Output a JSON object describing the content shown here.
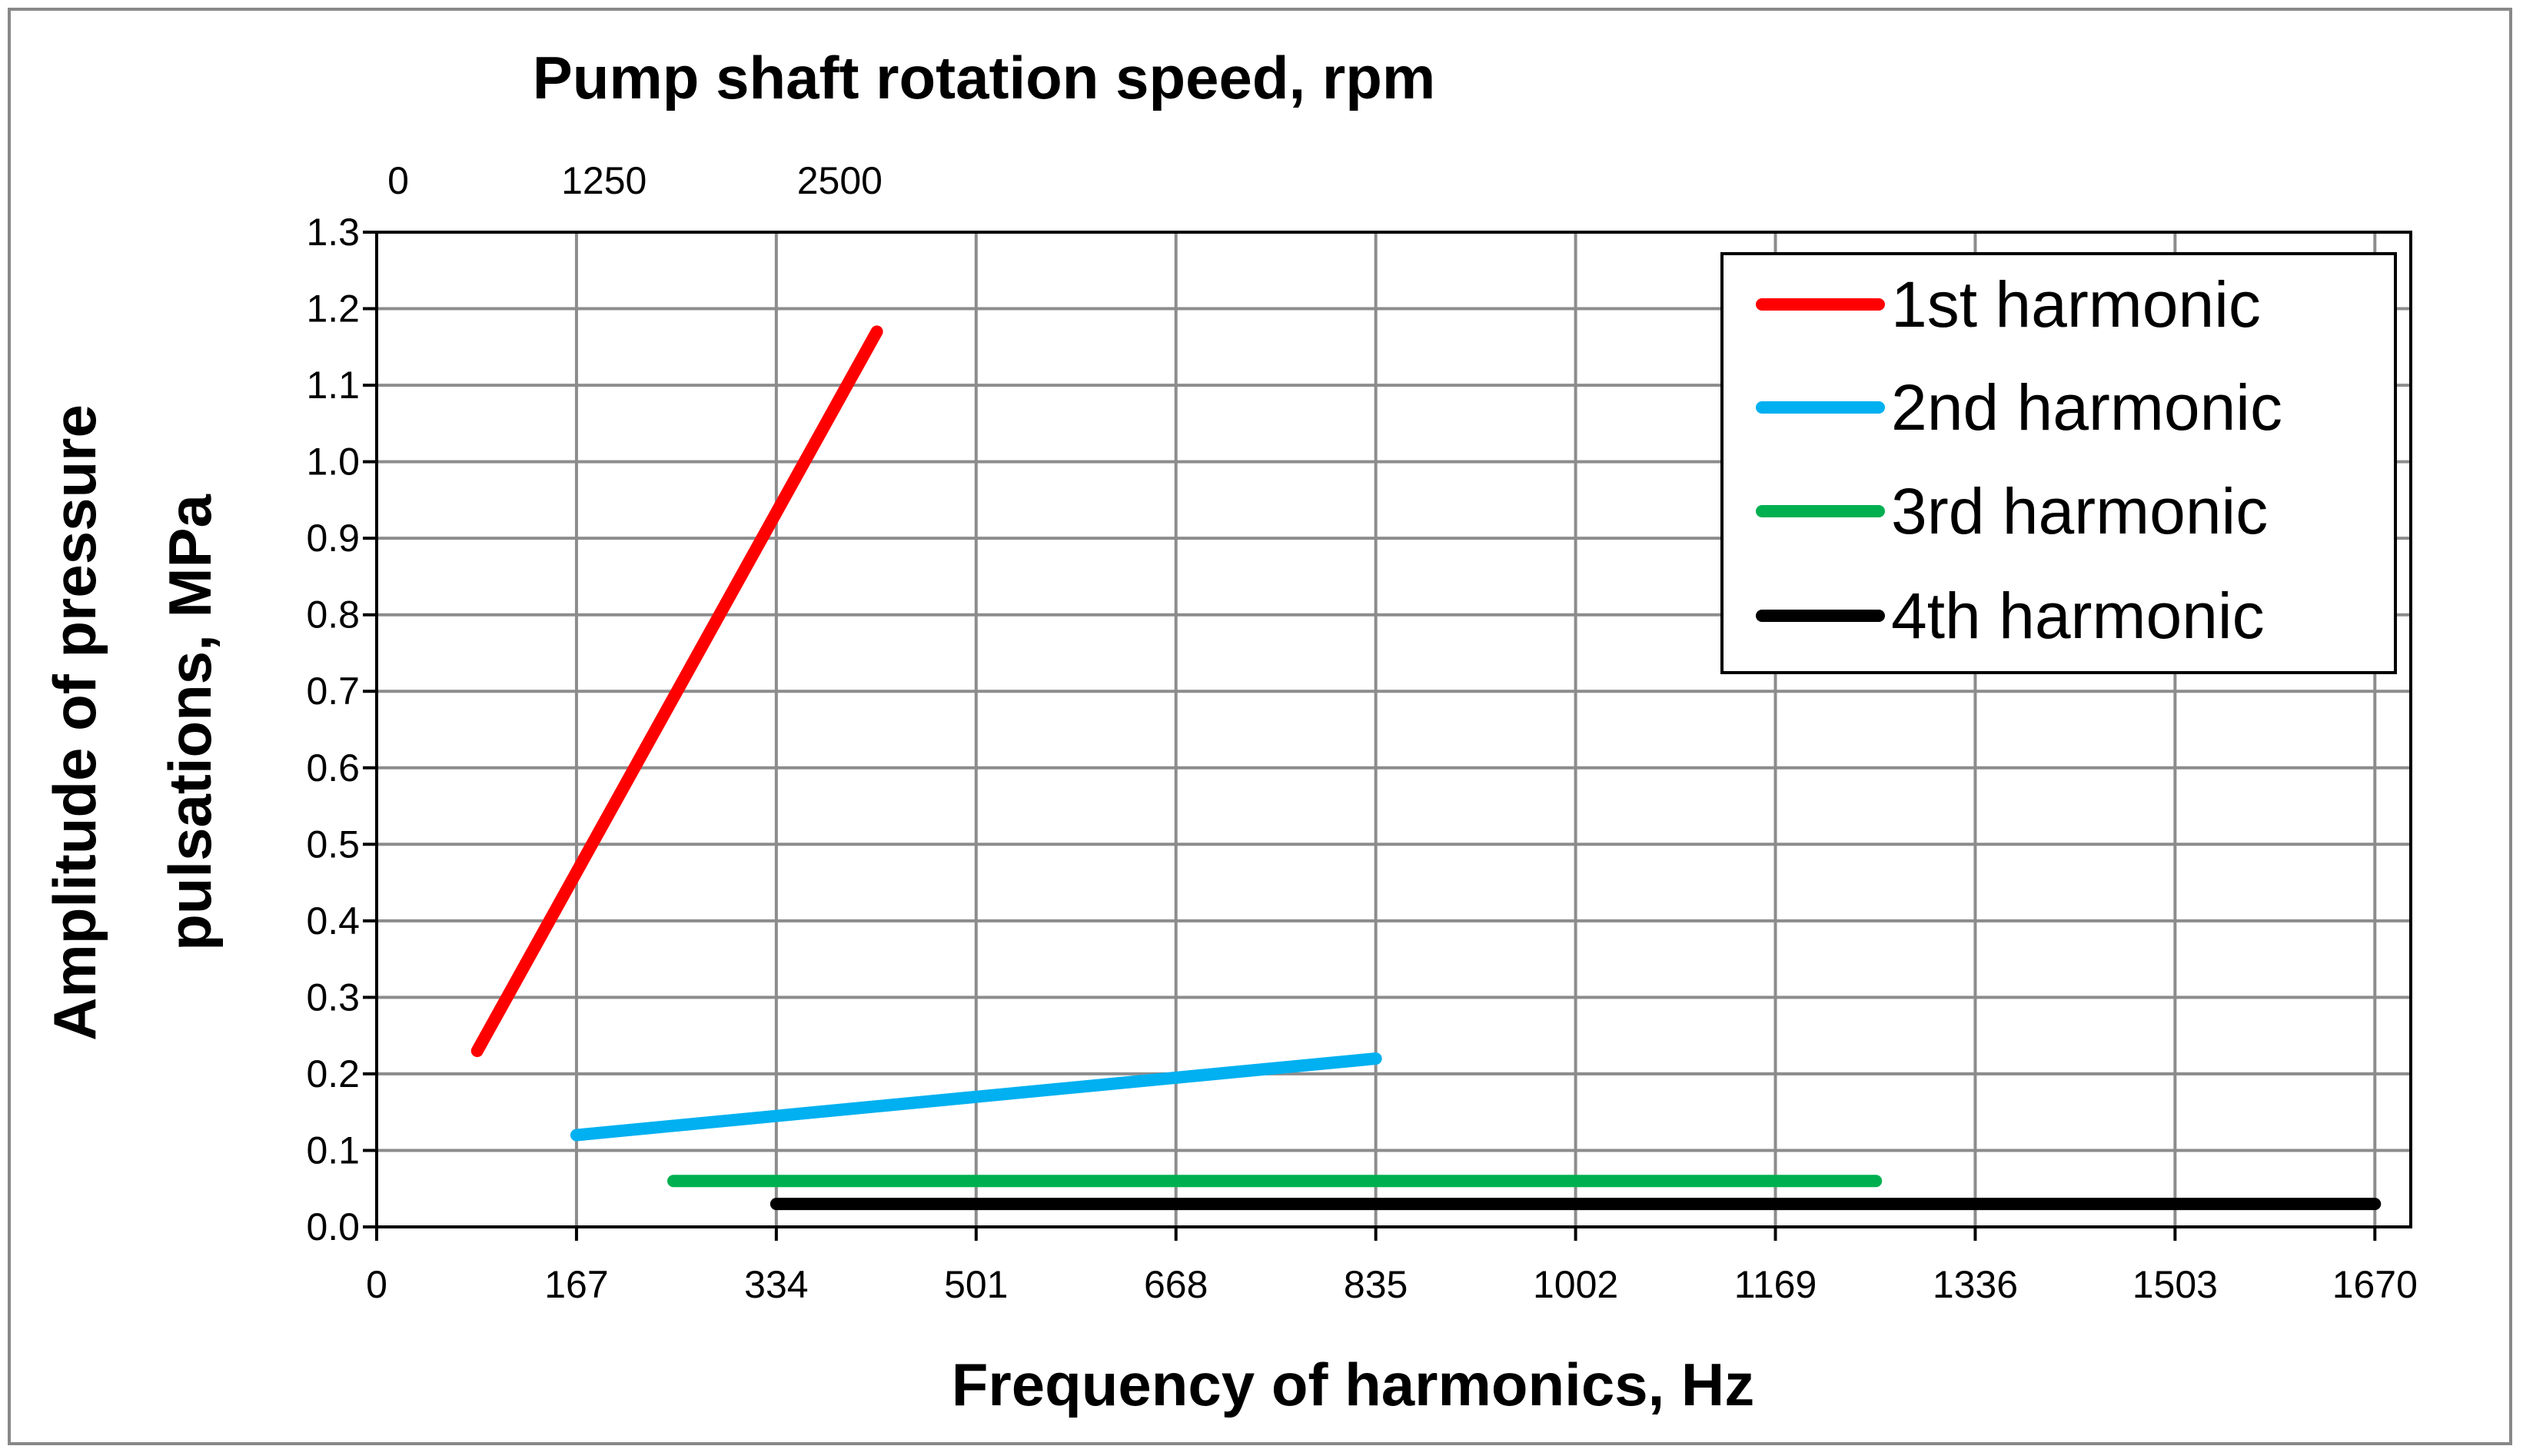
{
  "chart_data": {
    "type": "line",
    "title": "Pump shaft rotation speed, rpm",
    "xlabel": "Frequency of harmonics, Hz",
    "ylabel_line1": "Amplitude of pressure",
    "ylabel_line2": "pulsations, MPa",
    "xlim": [
      0,
      1700
    ],
    "ylim": [
      0,
      1.3
    ],
    "x_ticks": [
      0,
      167,
      334,
      501,
      668,
      835,
      1002,
      1169,
      1336,
      1503,
      1670
    ],
    "x_tick_labels": [
      "0",
      "167",
      "334",
      "501",
      "668",
      "835",
      "1002",
      "1169",
      "1336",
      "1503",
      "1670"
    ],
    "y_ticks": [
      0,
      0.1,
      0.2,
      0.3,
      0.4,
      0.5,
      0.6,
      0.7,
      0.8,
      0.9,
      1.0,
      1.1,
      1.2,
      1.3
    ],
    "y_tick_labels": [
      "0.0",
      "0.1",
      "0.2",
      "0.3",
      "0.4",
      "0.5",
      "0.6",
      "0.7",
      "0.8",
      "0.9",
      "1.0",
      "1.1",
      "1.2",
      "1.3"
    ],
    "top_axis": {
      "label": "Pump shaft rotation speed, rpm",
      "ticks_hz": [
        18,
        190,
        387
      ],
      "tick_labels": [
        "0",
        "1250",
        "2500"
      ]
    },
    "grid": true,
    "legend_position": "top-right",
    "series": [
      {
        "name": "1st harmonic",
        "color": "#ff0000",
        "x": [
          84,
          418
        ],
        "y": [
          0.23,
          1.17
        ]
      },
      {
        "name": "2nd harmonic",
        "color": "#00b0f0",
        "x": [
          167,
          835
        ],
        "y": [
          0.12,
          0.22
        ]
      },
      {
        "name": "3rd harmonic",
        "color": "#00b050",
        "x": [
          248,
          1253
        ],
        "y": [
          0.06,
          0.06
        ]
      },
      {
        "name": "4th harmonic",
        "color": "#000000",
        "x": [
          334,
          1670
        ],
        "y": [
          0.03,
          0.03
        ]
      }
    ]
  }
}
